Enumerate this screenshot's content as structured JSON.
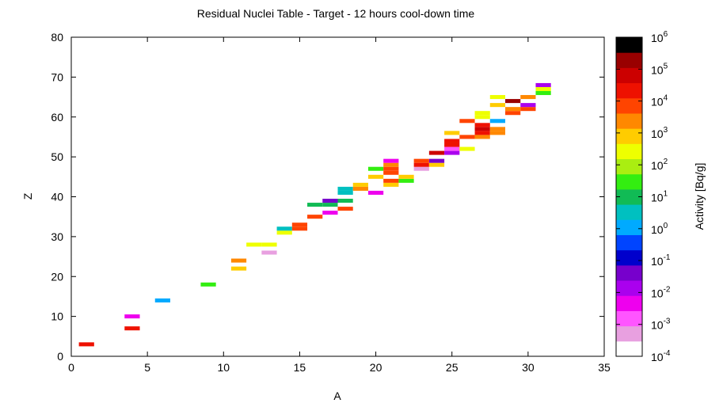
{
  "chart_data": {
    "type": "heatmap",
    "title": "Residual Nuclei Table - Target - 12 hours cool-down time",
    "xlabel": "A",
    "ylabel": "Z",
    "xlim": [
      0,
      35
    ],
    "ylim": [
      0,
      80
    ],
    "x_ticks": [
      "0",
      "5",
      "10",
      "15",
      "20",
      "25",
      "30",
      "35"
    ],
    "y_ticks": [
      "0",
      "10",
      "20",
      "30",
      "40",
      "50",
      "60",
      "70",
      "80"
    ],
    "grid": false,
    "colorbar": {
      "label": "Activity [Bq/g]",
      "scale": "log",
      "range": [
        -4,
        6
      ],
      "tick_base": "10",
      "tick_exponents": [
        "-4",
        "-3",
        "-2",
        "-1",
        "0",
        "1",
        "2",
        "3",
        "4",
        "5",
        "6"
      ],
      "colors": [
        "#ffffff",
        "#e8a0e0",
        "#ff55ff",
        "#ee00ee",
        "#aa00ee",
        "#7700cc",
        "#0000cc",
        "#0044ff",
        "#00aaff",
        "#00c0c0",
        "#11bb55",
        "#33ee11",
        "#aaee11",
        "#eeff00",
        "#ffcc00",
        "#ff8800",
        "#ff4400",
        "#ee1100",
        "#cc0000",
        "#990000",
        "#000000"
      ]
    },
    "points": [
      {
        "A": 1,
        "Z": 3,
        "log_activity": 4.3
      },
      {
        "A": 4,
        "Z": 7,
        "log_activity": 4.3
      },
      {
        "A": 4,
        "Z": 10,
        "log_activity": -2.2
      },
      {
        "A": 6,
        "Z": 14,
        "log_activity": 0.2
      },
      {
        "A": 9,
        "Z": 18,
        "log_activity": 1.3
      },
      {
        "A": 11,
        "Z": 22,
        "log_activity": 2.9
      },
      {
        "A": 11,
        "Z": 24,
        "log_activity": 3.3
      },
      {
        "A": 12,
        "Z": 28,
        "log_activity": 2.2
      },
      {
        "A": 13,
        "Z": 28,
        "log_activity": 2.2
      },
      {
        "A": 13,
        "Z": 26,
        "log_activity": -3.2
      },
      {
        "A": 14,
        "Z": 31,
        "log_activity": 2.2
      },
      {
        "A": 14,
        "Z": 32,
        "log_activity": 0.3
      },
      {
        "A": 15,
        "Z": 32,
        "log_activity": 3.8
      },
      {
        "A": 15,
        "Z": 33,
        "log_activity": 3.8
      },
      {
        "A": 16,
        "Z": 35,
        "log_activity": 3.8
      },
      {
        "A": 16,
        "Z": 38,
        "log_activity": 0.8
      },
      {
        "A": 17,
        "Z": 36,
        "log_activity": -2.2
      },
      {
        "A": 17,
        "Z": 38,
        "log_activity": 0.8
      },
      {
        "A": 17,
        "Z": 39,
        "log_activity": -1.2
      },
      {
        "A": 18,
        "Z": 37,
        "log_activity": 3.8
      },
      {
        "A": 18,
        "Z": 39,
        "log_activity": 0.8
      },
      {
        "A": 18,
        "Z": 41,
        "log_activity": 0.3
      },
      {
        "A": 18,
        "Z": 42,
        "log_activity": 0.3
      },
      {
        "A": 19,
        "Z": 42,
        "log_activity": 3.3
      },
      {
        "A": 19,
        "Z": 43,
        "log_activity": 2.8
      },
      {
        "A": 20,
        "Z": 41,
        "log_activity": -2.2
      },
      {
        "A": 20,
        "Z": 45,
        "log_activity": 2.8
      },
      {
        "A": 20,
        "Z": 47,
        "log_activity": 1.6
      },
      {
        "A": 21,
        "Z": 43,
        "log_activity": 2.9
      },
      {
        "A": 21,
        "Z": 44,
        "log_activity": 3.8
      },
      {
        "A": 21,
        "Z": 46,
        "log_activity": 3.8
      },
      {
        "A": 21,
        "Z": 47,
        "log_activity": 3.8
      },
      {
        "A": 21,
        "Z": 48,
        "log_activity": 3.3
      },
      {
        "A": 21,
        "Z": 49,
        "log_activity": -2.2
      },
      {
        "A": 22,
        "Z": 44,
        "log_activity": 1.3
      },
      {
        "A": 22,
        "Z": 45,
        "log_activity": 2.8
      },
      {
        "A": 23,
        "Z": 47,
        "log_activity": -3.2
      },
      {
        "A": 23,
        "Z": 48,
        "log_activity": 4.3
      },
      {
        "A": 23,
        "Z": 49,
        "log_activity": 3.8
      },
      {
        "A": 24,
        "Z": 48,
        "log_activity": 2.8
      },
      {
        "A": 24,
        "Z": 49,
        "log_activity": -1.2
      },
      {
        "A": 24,
        "Z": 51,
        "log_activity": 4.8
      },
      {
        "A": 25,
        "Z": 51,
        "log_activity": -1.7
      },
      {
        "A": 25,
        "Z": 52,
        "log_activity": -2.7
      },
      {
        "A": 25,
        "Z": 53,
        "log_activity": 4.3
      },
      {
        "A": 25,
        "Z": 54,
        "log_activity": 4.3
      },
      {
        "A": 25,
        "Z": 56,
        "log_activity": 2.8
      },
      {
        "A": 26,
        "Z": 52,
        "log_activity": 2.2
      },
      {
        "A": 26,
        "Z": 55,
        "log_activity": 3.8
      },
      {
        "A": 26,
        "Z": 59,
        "log_activity": 3.8
      },
      {
        "A": 27,
        "Z": 55,
        "log_activity": 3.3
      },
      {
        "A": 27,
        "Z": 56,
        "log_activity": 4.3
      },
      {
        "A": 27,
        "Z": 57,
        "log_activity": 4.8
      },
      {
        "A": 27,
        "Z": 58,
        "log_activity": 4.3
      },
      {
        "A": 27,
        "Z": 60,
        "log_activity": 2.2
      },
      {
        "A": 27,
        "Z": 61,
        "log_activity": 2.2
      },
      {
        "A": 28,
        "Z": 56,
        "log_activity": 3.3
      },
      {
        "A": 28,
        "Z": 57,
        "log_activity": 3.3
      },
      {
        "A": 28,
        "Z": 59,
        "log_activity": 0.2
      },
      {
        "A": 28,
        "Z": 63,
        "log_activity": 2.8
      },
      {
        "A": 28,
        "Z": 65,
        "log_activity": 2.2
      },
      {
        "A": 29,
        "Z": 61,
        "log_activity": 3.8
      },
      {
        "A": 29,
        "Z": 62,
        "log_activity": 3.3
      },
      {
        "A": 29,
        "Z": 64,
        "log_activity": 5.3
      },
      {
        "A": 30,
        "Z": 62,
        "log_activity": 3.8
      },
      {
        "A": 30,
        "Z": 63,
        "log_activity": -1.7
      },
      {
        "A": 30,
        "Z": 65,
        "log_activity": 3.3
      },
      {
        "A": 31,
        "Z": 66,
        "log_activity": 1.3
      },
      {
        "A": 31,
        "Z": 67,
        "log_activity": 2.2
      },
      {
        "A": 31,
        "Z": 68,
        "log_activity": -1.7
      }
    ]
  }
}
